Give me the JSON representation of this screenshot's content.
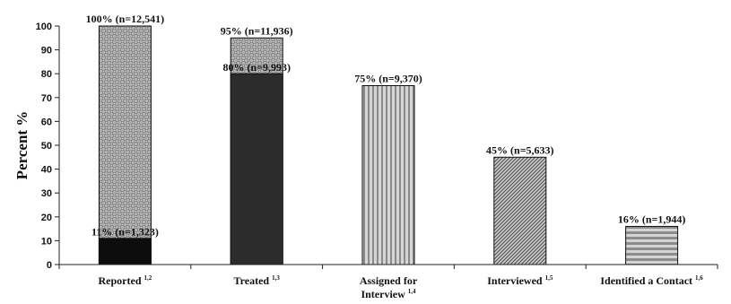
{
  "chart_data": {
    "type": "bar",
    "ylabel": "Percent %",
    "xlabel": "",
    "title": "",
    "ylim": [
      0,
      100
    ],
    "yticks": [
      0,
      10,
      20,
      30,
      40,
      50,
      60,
      70,
      80,
      90,
      100
    ],
    "grid": false,
    "legend": "none",
    "categories": [
      {
        "name": "Reported",
        "sup": "1,2"
      },
      {
        "name": "Treated",
        "sup": "1,3"
      },
      {
        "name": "Assigned for Interview",
        "line1": "Assigned for",
        "line2": "Interview",
        "sup": "1,4"
      },
      {
        "name": "Interviewed",
        "sup": "1,5"
      },
      {
        "name": "Identified a Contact",
        "sup": "1,6"
      }
    ],
    "bars": [
      {
        "category": "Reported",
        "value": 100,
        "label": "100% (n=12,541)",
        "pattern": "checker",
        "inner": {
          "value": 11,
          "label": "11% (n=1,323)",
          "color": "#0d0d0d"
        }
      },
      {
        "category": "Treated",
        "value": 95,
        "label": "95% (n=11,936)",
        "pattern": "checker",
        "inner": {
          "value": 80,
          "label": "80% (n=9,993)",
          "color": "#2c2c2c"
        }
      },
      {
        "category": "Assigned for Interview",
        "value": 75,
        "label": "75% (n=9,370)",
        "pattern": "vstripes"
      },
      {
        "category": "Interviewed",
        "value": 45,
        "label": "45% (n=5,633)",
        "pattern": "diag"
      },
      {
        "category": "Identified a Contact",
        "value": 16,
        "label": "16% (n=1,944)",
        "pattern": "hstripes"
      }
    ]
  }
}
